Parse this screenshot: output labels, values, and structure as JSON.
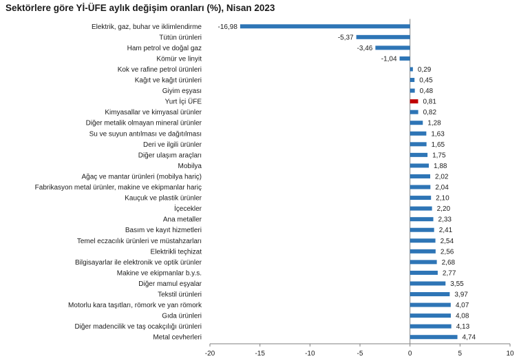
{
  "chart_data": {
    "type": "bar",
    "orientation": "horizontal",
    "title": "Sektörlere göre Yİ-ÜFE aylık değişim oranları (%), Nisan 2023",
    "xlabel": "",
    "ylabel": "",
    "xlim": [
      -20,
      10
    ],
    "xticks": [
      -20,
      -15,
      -10,
      -5,
      0,
      5,
      10
    ],
    "grid": false,
    "legend": "none",
    "colors": {
      "default": "#2e75b6",
      "highlight": "#c00000"
    },
    "highlight_category": "Yurt İçi ÜFE",
    "categories": [
      "Elektrik, gaz, buhar ve iklimlendirme",
      "Tütün ürünleri",
      "Ham petrol ve doğal gaz",
      "Kömür ve linyit",
      "Kok ve rafine petrol ürünleri",
      "Kağıt ve kağıt ürünleri",
      "Giyim eşyası",
      "Yurt İçi ÜFE",
      "Kimyasallar ve kimyasal ürünler",
      "Diğer metalik olmayan mineral ürünler",
      "Su ve suyun antılması ve dağıtılması",
      "Deri ve ilgili ürünler",
      "Diğer ulaşım araçları",
      "Mobilya",
      "Ağaç ve mantar ürünleri (mobilya hariç)",
      "Fabrikasyon metal ürünler, makine ve ekipmanlar hariç",
      "Kauçuk ve plastik ürünler",
      "İçecekler",
      "Ana metaller",
      "Basım ve kayıt hizmetleri",
      "Temel eczacılık ürünleri ve müstahzarları",
      "Elektrikli teçhizat",
      "Bilgisayarlar ile elektronik ve optik ürünler",
      "Makine ve ekipmanlar b.y.s.",
      "Diğer mamul eşyalar",
      "Tekstil ürünleri",
      "Motorlu kara taşıtları, römork ve yan römork",
      "Gıda ürünleri",
      "Diğer madencilik ve taş ocakçılığı ürünleri",
      "Metal cevherleri"
    ],
    "values": [
      -16.98,
      -5.37,
      -3.46,
      -1.04,
      0.29,
      0.45,
      0.48,
      0.81,
      0.82,
      1.28,
      1.63,
      1.65,
      1.75,
      1.88,
      2.02,
      2.04,
      2.1,
      2.2,
      2.33,
      2.41,
      2.54,
      2.56,
      2.68,
      2.77,
      3.55,
      3.97,
      4.07,
      4.08,
      4.13,
      4.74
    ],
    "value_labels": [
      "-16,98",
      "-5,37",
      "-3,46",
      "-1,04",
      "0,29",
      "0,45",
      "0,48",
      "0,81",
      "0,82",
      "1,28",
      "1,63",
      "1,65",
      "1,75",
      "1,88",
      "2,02",
      "2,04",
      "2,10",
      "2,20",
      "2,33",
      "2,41",
      "2,54",
      "2,56",
      "2,68",
      "2,77",
      "3,55",
      "3,97",
      "4,07",
      "4,08",
      "4,13",
      "4,74"
    ]
  }
}
